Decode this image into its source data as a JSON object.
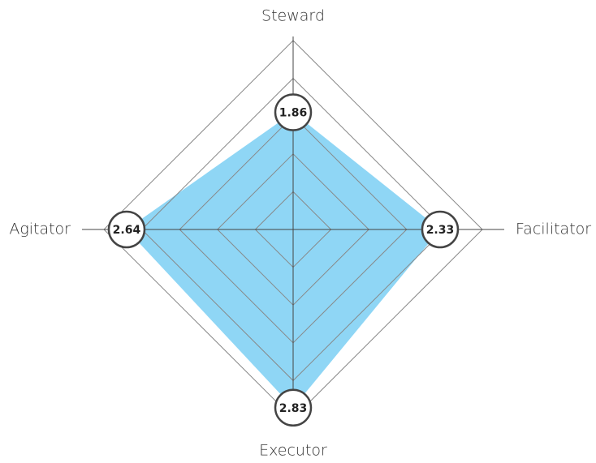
{
  "chart_data": {
    "type": "radar",
    "categories": [
      "Steward",
      "Facilitator",
      "Executor",
      "Agitator"
    ],
    "values": [
      1.86,
      2.33,
      2.83,
      2.64
    ],
    "color": "#8fd6f5",
    "rlim": [
      0,
      3
    ],
    "rticks": [
      0.6,
      1.2,
      1.8,
      2.4,
      3
    ],
    "grid": true
  }
}
